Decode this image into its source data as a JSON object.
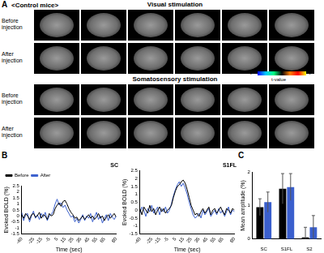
{
  "figure": {
    "panel_A": {
      "label": "A",
      "title": "<Control mice>",
      "sections": [
        {
          "title": "Visual stimulation",
          "rows": [
            "Before injection",
            "After injection"
          ]
        },
        {
          "title": "Somatosensory stimulation",
          "rows": [
            "Before injection",
            "After injection"
          ]
        }
      ],
      "colorbar": {
        "range": [
          -7,
          7
        ],
        "ticks": [
          -7,
          7
        ],
        "label": "t-value"
      }
    },
    "panel_B_label": "B",
    "panel_C_label": "C"
  },
  "chart_data": [
    {
      "type": "line",
      "title": "SC",
      "x": [
        -40,
        -37.5,
        -35,
        -32.5,
        -30,
        -27.5,
        -25,
        -22.5,
        -20,
        -17.5,
        -15,
        -12.5,
        -10,
        -7.5,
        -5,
        -2.5,
        0,
        2.5,
        5,
        7.5,
        10,
        12.5,
        15,
        17.5,
        20,
        22.5,
        25,
        27.5,
        30,
        32.5,
        35,
        37.5,
        40,
        42.5,
        45,
        47.5,
        50,
        52.5,
        55,
        57.5,
        60,
        62.5,
        65,
        67.5,
        70,
        72.5,
        75,
        77.5,
        80
      ],
      "series": [
        {
          "name": "Before",
          "color": "#000000",
          "values": [
            0.1,
            -0.2,
            0.2,
            0.0,
            -0.3,
            0.1,
            0.2,
            -0.1,
            0.0,
            0.3,
            -0.2,
            0.1,
            0.0,
            -0.3,
            0.2,
            0.0,
            0.1,
            0.6,
            0.9,
            1.1,
            0.8,
            1.2,
            1.3,
            1.0,
            0.6,
            0.3,
            0.1,
            -0.2,
            -0.1,
            -0.4,
            -0.2,
            0.0,
            -0.3,
            -0.1,
            0.1,
            -0.2,
            0.0,
            -0.3,
            -0.1,
            0.2,
            -0.2,
            0.0,
            -0.4,
            -0.1,
            0.1,
            -0.2,
            0.0,
            0.2,
            -0.1
          ]
        },
        {
          "name": "After",
          "color": "#3a5fcd",
          "values": [
            0.3,
            -0.4,
            0.1,
            0.2,
            -0.5,
            0.0,
            0.4,
            -0.2,
            0.1,
            -0.3,
            0.2,
            -0.1,
            0.3,
            -0.4,
            0.0,
            0.1,
            0.4,
            1.0,
            1.4,
            0.9,
            1.1,
            0.7,
            0.9,
            0.5,
            0.2,
            -0.1,
            0.0,
            -0.5,
            -0.2,
            -0.6,
            -0.3,
            0.1,
            -0.4,
            0.0,
            -0.2,
            0.2,
            -0.5,
            -0.1,
            0.3,
            -0.3,
            0.0,
            -0.6,
            -0.2,
            0.1,
            -0.4,
            0.2,
            -0.1,
            -0.3,
            0.0
          ]
        }
      ],
      "xlabel": "Time (sec)",
      "ylabel": "Evoked BOLD (%)",
      "xlim": [
        -40,
        80
      ],
      "xticks": [
        -40,
        -25,
        -15,
        -5,
        5,
        15,
        25,
        35,
        45,
        55,
        65,
        80
      ],
      "ylim": [
        -1.5,
        2.5
      ],
      "yticks": [
        -1.5,
        -1,
        -0.5,
        0,
        0.5,
        1,
        1.5,
        2,
        2.5
      ],
      "grid": false,
      "legend": "upper left"
    },
    {
      "type": "line",
      "title": "S1FL",
      "x": [
        -40,
        -37.5,
        -35,
        -32.5,
        -30,
        -27.5,
        -25,
        -22.5,
        -20,
        -17.5,
        -15,
        -12.5,
        -10,
        -7.5,
        -5,
        -2.5,
        0,
        2.5,
        5,
        7.5,
        10,
        12.5,
        15,
        17.5,
        20,
        22.5,
        25,
        27.5,
        30,
        32.5,
        35,
        37.5,
        40,
        42.5,
        45,
        47.5,
        50,
        52.5,
        55,
        57.5,
        60,
        62.5,
        65,
        67.5,
        70,
        72.5,
        75,
        77.5,
        80
      ],
      "series": [
        {
          "color": "#000000",
          "values": [
            0.1,
            -0.3,
            0.2,
            0.0,
            -0.2,
            0.3,
            -0.1,
            0.1,
            -0.3,
            0.0,
            0.2,
            -0.1,
            0.1,
            -0.2,
            0.0,
            0.1,
            0.3,
            0.8,
            1.2,
            1.5,
            1.6,
            1.8,
            1.9,
            1.7,
            1.3,
            0.8,
            0.3,
            0.0,
            -0.3,
            -0.2,
            -0.4,
            -0.1,
            0.1,
            -0.2,
            0.0,
            0.2,
            -0.3,
            0.0,
            0.1,
            -0.2,
            0.0,
            0.2,
            -0.1,
            -0.3,
            0.1,
            0.0,
            -0.2,
            0.1,
            0.0
          ]
        },
        {
          "color": "#3a5fcd",
          "values": [
            -0.2,
            0.2,
            0.0,
            -0.4,
            0.1,
            -0.1,
            0.3,
            -0.2,
            0.0,
            0.2,
            -0.3,
            0.1,
            -0.1,
            0.2,
            -0.2,
            0.0,
            0.4,
            0.9,
            1.3,
            1.6,
            1.8,
            1.5,
            1.7,
            1.4,
            1.0,
            0.5,
            0.1,
            -0.3,
            -0.5,
            -0.4,
            -0.2,
            -0.5,
            0.0,
            -0.3,
            -0.1,
            0.1,
            -0.4,
            -0.2,
            0.0,
            -0.3,
            0.1,
            -0.2,
            0.0,
            -0.4,
            -0.1,
            0.2,
            -0.3,
            0.0,
            -0.1
          ]
        }
      ],
      "xlabel": "Time (sec)",
      "ylabel": "Evoked BOLD (%)",
      "xlim": [
        -40,
        80
      ],
      "xticks": [
        -40,
        -25,
        -15,
        -5,
        5,
        15,
        25,
        35,
        45,
        55,
        65,
        80
      ],
      "ylim": [
        -1.5,
        2.5
      ],
      "yticks": [
        -1.5,
        -1,
        -0.5,
        0,
        0.5,
        1,
        1.5,
        2,
        2.5
      ],
      "grid": false
    },
    {
      "type": "bar",
      "categories": [
        "SC",
        "S1FL",
        "S2"
      ],
      "series": [
        {
          "color": "#000000",
          "values": [
            0.95,
            1.5,
            0.05
          ],
          "errors": [
            0.25,
            0.45,
            0.3
          ]
        },
        {
          "color": "#3a5fcd",
          "values": [
            1.1,
            1.55,
            0.35
          ],
          "errors": [
            0.3,
            0.4,
            0.35
          ]
        }
      ],
      "ylabel": "Mean amplitude (%)",
      "ylim": [
        0,
        2
      ],
      "yticks": [
        0,
        1,
        2
      ],
      "grid": false
    }
  ]
}
